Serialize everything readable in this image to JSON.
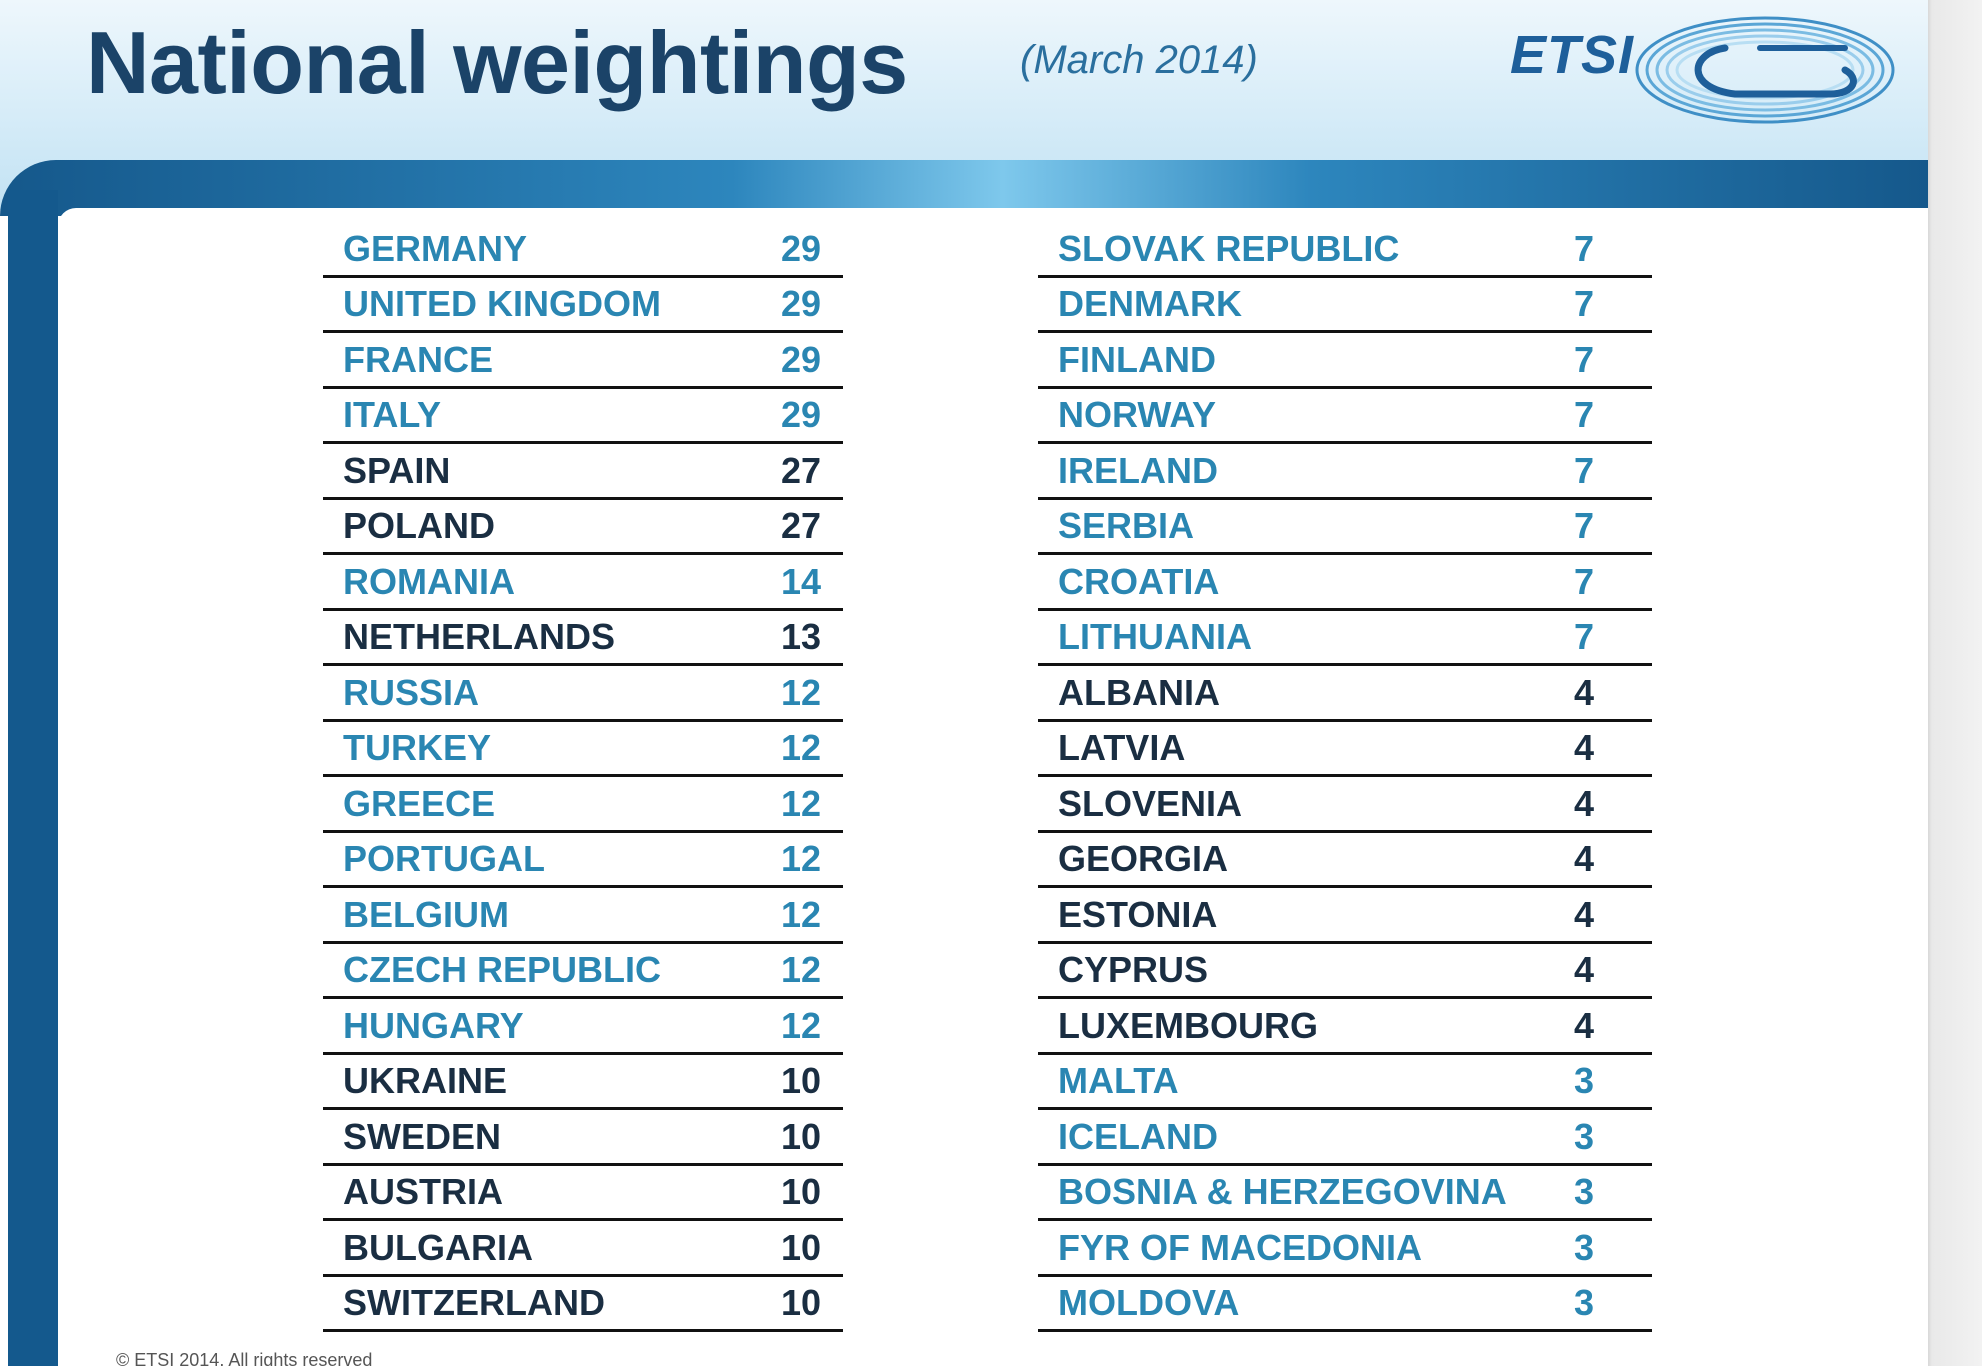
{
  "header": {
    "title": "National weightings",
    "subtitle": "(March 2014)",
    "logo_text": "ETSI"
  },
  "colors": {
    "teal": "#2a86b2",
    "dark": "#1a2e42",
    "title": "#1b4368",
    "frame": "#14598d"
  },
  "left_table": [
    {
      "country": "GERMANY",
      "weight": "29",
      "color": "teal"
    },
    {
      "country": "UNITED KINGDOM",
      "weight": "29",
      "color": "teal"
    },
    {
      "country": "FRANCE",
      "weight": "29",
      "color": "teal"
    },
    {
      "country": "ITALY",
      "weight": "29",
      "color": "teal"
    },
    {
      "country": "SPAIN",
      "weight": "27",
      "color": "dark"
    },
    {
      "country": "POLAND",
      "weight": "27",
      "color": "dark"
    },
    {
      "country": "ROMANIA",
      "weight": "14",
      "color": "teal"
    },
    {
      "country": "NETHERLANDS",
      "weight": "13",
      "color": "dark"
    },
    {
      "country": "RUSSIA",
      "weight": "12",
      "color": "teal"
    },
    {
      "country": "TURKEY",
      "weight": "12",
      "color": "teal"
    },
    {
      "country": "GREECE",
      "weight": "12",
      "color": "teal"
    },
    {
      "country": "PORTUGAL",
      "weight": "12",
      "color": "teal"
    },
    {
      "country": "BELGIUM",
      "weight": "12",
      "color": "teal"
    },
    {
      "country": "CZECH REPUBLIC",
      "weight": "12",
      "color": "teal"
    },
    {
      "country": "HUNGARY",
      "weight": "12",
      "color": "teal"
    },
    {
      "country": "UKRAINE",
      "weight": "10",
      "color": "dark"
    },
    {
      "country": "SWEDEN",
      "weight": "10",
      "color": "dark"
    },
    {
      "country": "AUSTRIA",
      "weight": "10",
      "color": "dark"
    },
    {
      "country": "BULGARIA",
      "weight": "10",
      "color": "dark"
    },
    {
      "country": "SWITZERLAND",
      "weight": "10",
      "color": "dark"
    }
  ],
  "right_table": [
    {
      "country": "SLOVAK REPUBLIC",
      "weight": "7",
      "color": "teal"
    },
    {
      "country": "DENMARK",
      "weight": "7",
      "color": "teal"
    },
    {
      "country": "FINLAND",
      "weight": "7",
      "color": "teal"
    },
    {
      "country": "NORWAY",
      "weight": "7",
      "color": "teal"
    },
    {
      "country": "IRELAND",
      "weight": "7",
      "color": "teal"
    },
    {
      "country": "SERBIA",
      "weight": "7",
      "color": "teal"
    },
    {
      "country": "CROATIA",
      "weight": "7",
      "color": "teal"
    },
    {
      "country": "LITHUANIA",
      "weight": "7",
      "color": "teal"
    },
    {
      "country": "ALBANIA",
      "weight": "4",
      "color": "dark"
    },
    {
      "country": "LATVIA",
      "weight": "4",
      "color": "dark"
    },
    {
      "country": "SLOVENIA",
      "weight": "4",
      "color": "dark"
    },
    {
      "country": "GEORGIA",
      "weight": "4",
      "color": "dark"
    },
    {
      "country": "ESTONIA",
      "weight": "4",
      "color": "dark"
    },
    {
      "country": "CYPRUS",
      "weight": "4",
      "color": "dark"
    },
    {
      "country": "LUXEMBOURG",
      "weight": "4",
      "color": "dark"
    },
    {
      "country": "MALTA",
      "weight": "3",
      "color": "teal"
    },
    {
      "country": "ICELAND",
      "weight": "3",
      "color": "teal"
    },
    {
      "country": "BOSNIA & HERZEGOVINA",
      "weight": "3",
      "color": "teal"
    },
    {
      "country": "FYR OF MACEDONIA",
      "weight": "3",
      "color": "teal"
    },
    {
      "country": "MOLDOVA",
      "weight": "3",
      "color": "teal"
    }
  ],
  "footer": {
    "copyright": "© ETSI 2014. All rights reserved"
  }
}
